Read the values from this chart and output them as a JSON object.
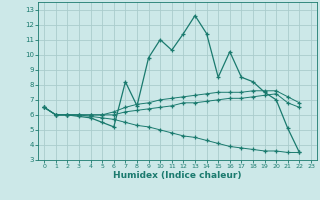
{
  "xlabel": "Humidex (Indice chaleur)",
  "bg_color": "#cce8e8",
  "grid_color": "#aacccc",
  "line_color": "#1a7a6e",
  "xlim": [
    -0.5,
    23.5
  ],
  "ylim": [
    3,
    13.5
  ],
  "xticks": [
    0,
    1,
    2,
    3,
    4,
    5,
    6,
    7,
    8,
    9,
    10,
    11,
    12,
    13,
    14,
    15,
    16,
    17,
    18,
    19,
    20,
    21,
    22,
    23
  ],
  "yticks": [
    3,
    4,
    5,
    6,
    7,
    8,
    9,
    10,
    11,
    12,
    13
  ],
  "series": [
    [
      6.5,
      6.0,
      6.0,
      5.9,
      5.8,
      5.5,
      5.2,
      8.2,
      6.6,
      9.8,
      11.0,
      10.3,
      11.4,
      12.6,
      11.4,
      8.5,
      10.2,
      8.5,
      8.2,
      7.5,
      7.0,
      5.1,
      3.5
    ],
    [
      6.5,
      6.0,
      6.0,
      6.0,
      6.0,
      6.0,
      6.2,
      6.5,
      6.7,
      6.8,
      7.0,
      7.1,
      7.2,
      7.3,
      7.4,
      7.5,
      7.5,
      7.5,
      7.6,
      7.6,
      7.6,
      7.2,
      6.8
    ],
    [
      6.5,
      6.0,
      6.0,
      6.0,
      6.0,
      6.0,
      6.0,
      6.2,
      6.3,
      6.4,
      6.5,
      6.6,
      6.8,
      6.8,
      6.9,
      7.0,
      7.1,
      7.1,
      7.2,
      7.3,
      7.4,
      6.8,
      6.5
    ],
    [
      6.5,
      6.0,
      6.0,
      6.0,
      5.9,
      5.8,
      5.7,
      5.5,
      5.3,
      5.2,
      5.0,
      4.8,
      4.6,
      4.5,
      4.3,
      4.1,
      3.9,
      3.8,
      3.7,
      3.6,
      3.6,
      3.5,
      3.5
    ]
  ],
  "series_x": [
    0,
    1,
    2,
    3,
    4,
    5,
    6,
    7,
    8,
    9,
    10,
    11,
    12,
    13,
    14,
    15,
    16,
    17,
    18,
    19,
    20,
    21,
    22
  ]
}
